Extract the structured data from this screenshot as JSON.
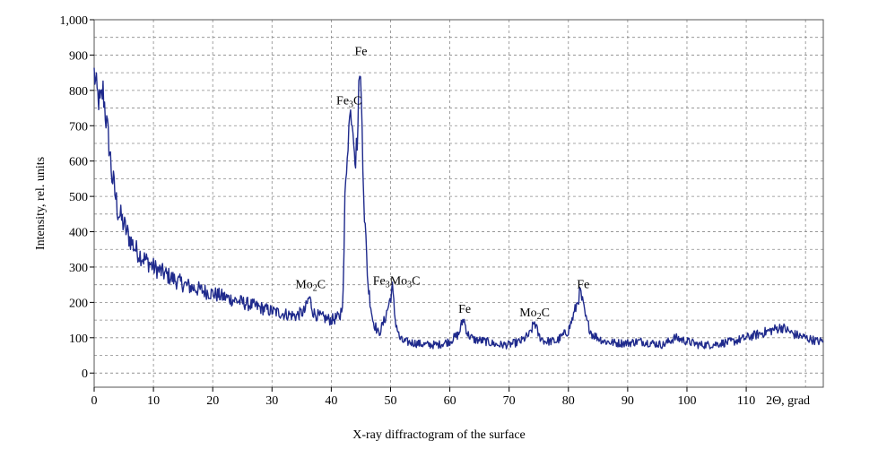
{
  "chart_data": {
    "type": "line",
    "title": "",
    "xlabel": "2Θ, grad",
    "ylabel": "Intensity, rel. units",
    "xlim": [
      0,
      123
    ],
    "ylim": [
      -40,
      1000
    ],
    "x_ticks": [
      "0",
      "10",
      "20",
      "30",
      "40",
      "50",
      "60",
      "70",
      "80",
      "90",
      "100",
      "110"
    ],
    "x_tick_values": [
      0,
      10,
      20,
      30,
      40,
      50,
      60,
      70,
      80,
      90,
      100,
      110
    ],
    "y_ticks": [
      "0",
      "100",
      "200",
      "300",
      "400",
      "500",
      "600",
      "700",
      "800",
      "900",
      "1,000"
    ],
    "y_tick_values": [
      0,
      100,
      200,
      300,
      400,
      500,
      600,
      700,
      800,
      900,
      1000
    ],
    "grid": true,
    "line_color": "#1f2a8c",
    "series": [
      {
        "name": "",
        "x": [
          0,
          0.5,
          1,
          1.5,
          2,
          2.5,
          3,
          3.5,
          4,
          5,
          6,
          7,
          8,
          10,
          12,
          14,
          16,
          18,
          20,
          22,
          24,
          26,
          28,
          30,
          32,
          34,
          35.5,
          36.3,
          37,
          38,
          40,
          41.5,
          42,
          42.3,
          42.7,
          43.1,
          43.4,
          43.8,
          44.1,
          44.5,
          44.8,
          45.2,
          45.6,
          46.2,
          47,
          48,
          49,
          49.8,
          50.3,
          50.8,
          51.5,
          52,
          54,
          56,
          58,
          60,
          61.5,
          62.3,
          63,
          64,
          66,
          68,
          70,
          72,
          73.5,
          74.3,
          75,
          76,
          78,
          80,
          81,
          82,
          83,
          84,
          86,
          88,
          90,
          92,
          94,
          96,
          98,
          100,
          102,
          104,
          106,
          108,
          110,
          112,
          114,
          116,
          118,
          120,
          122,
          123
        ],
        "y": [
          850,
          790,
          760,
          800,
          720,
          650,
          560,
          510,
          460,
          420,
          380,
          350,
          330,
          300,
          280,
          260,
          245,
          235,
          225,
          215,
          205,
          195,
          185,
          175,
          168,
          162,
          175,
          215,
          170,
          160,
          150,
          160,
          220,
          480,
          640,
          720,
          740,
          680,
          600,
          700,
          880,
          700,
          450,
          250,
          150,
          110,
          150,
          200,
          240,
          150,
          100,
          90,
          85,
          80,
          80,
          90,
          110,
          155,
          110,
          95,
          90,
          80,
          80,
          90,
          110,
          145,
          105,
          90,
          90,
          120,
          170,
          230,
          150,
          110,
          90,
          85,
          85,
          90,
          85,
          80,
          100,
          90,
          80,
          80,
          85,
          90,
          100,
          110,
          120,
          130,
          110,
          100,
          90,
          90
        ]
      }
    ],
    "annotations": [
      {
        "label": "Fe",
        "x": 45,
        "y": 900
      },
      {
        "label": "Fe3C",
        "x": 43,
        "y": 760
      },
      {
        "label": "Mo2C",
        "x": 36.5,
        "y": 240
      },
      {
        "label": "Fe3Mo3C",
        "x": 51,
        "y": 250
      },
      {
        "label": "Fe",
        "x": 62.5,
        "y": 170
      },
      {
        "label": "Mo2C",
        "x": 74.3,
        "y": 160
      },
      {
        "label": "Fe",
        "x": 82.5,
        "y": 240
      }
    ],
    "caption": "X-ray diffractogram of the surface"
  }
}
